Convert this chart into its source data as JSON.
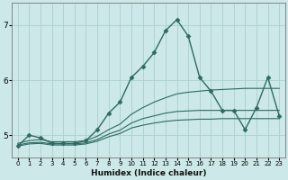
{
  "xlabel": "Humidex (Indice chaleur)",
  "background_color": "#cce8e8",
  "grid_color": "#aacfcf",
  "line_color": "#2d6b60",
  "x_ticks": [
    0,
    1,
    2,
    3,
    4,
    5,
    6,
    7,
    8,
    9,
    10,
    11,
    12,
    13,
    14,
    15,
    16,
    17,
    18,
    19,
    20,
    21,
    22,
    23
  ],
  "ylim": [
    4.6,
    7.4
  ],
  "xlim": [
    -0.5,
    23.5
  ],
  "yticks": [
    5,
    6,
    7
  ],
  "series": {
    "main": [
      4.8,
      5.0,
      4.95,
      4.85,
      4.85,
      4.85,
      4.9,
      5.1,
      5.4,
      5.6,
      6.05,
      6.25,
      6.5,
      6.9,
      7.1,
      6.8,
      6.05,
      5.8,
      5.45,
      5.45,
      5.1,
      5.5,
      6.05,
      5.35
    ],
    "env_upper": [
      4.85,
      4.9,
      4.92,
      4.88,
      4.88,
      4.88,
      4.9,
      4.98,
      5.1,
      5.2,
      5.38,
      5.5,
      5.6,
      5.68,
      5.75,
      5.78,
      5.8,
      5.82,
      5.83,
      5.84,
      5.85,
      5.85,
      5.85,
      5.85
    ],
    "env_lower": [
      4.8,
      4.84,
      4.85,
      4.82,
      4.82,
      4.82,
      4.84,
      4.89,
      4.97,
      5.03,
      5.13,
      5.18,
      5.22,
      5.25,
      5.27,
      5.28,
      5.29,
      5.29,
      5.3,
      5.3,
      5.3,
      5.3,
      5.3,
      5.3
    ],
    "flat": [
      4.82,
      4.86,
      4.87,
      4.84,
      4.84,
      4.84,
      4.86,
      4.92,
      5.02,
      5.09,
      5.22,
      5.3,
      5.35,
      5.4,
      5.43,
      5.44,
      5.45,
      5.45,
      5.45,
      5.45,
      5.45,
      5.45,
      5.45,
      5.45
    ]
  },
  "marker": "D",
  "marker_size": 2.5,
  "lw_main": 1.0,
  "lw_env": 0.8
}
